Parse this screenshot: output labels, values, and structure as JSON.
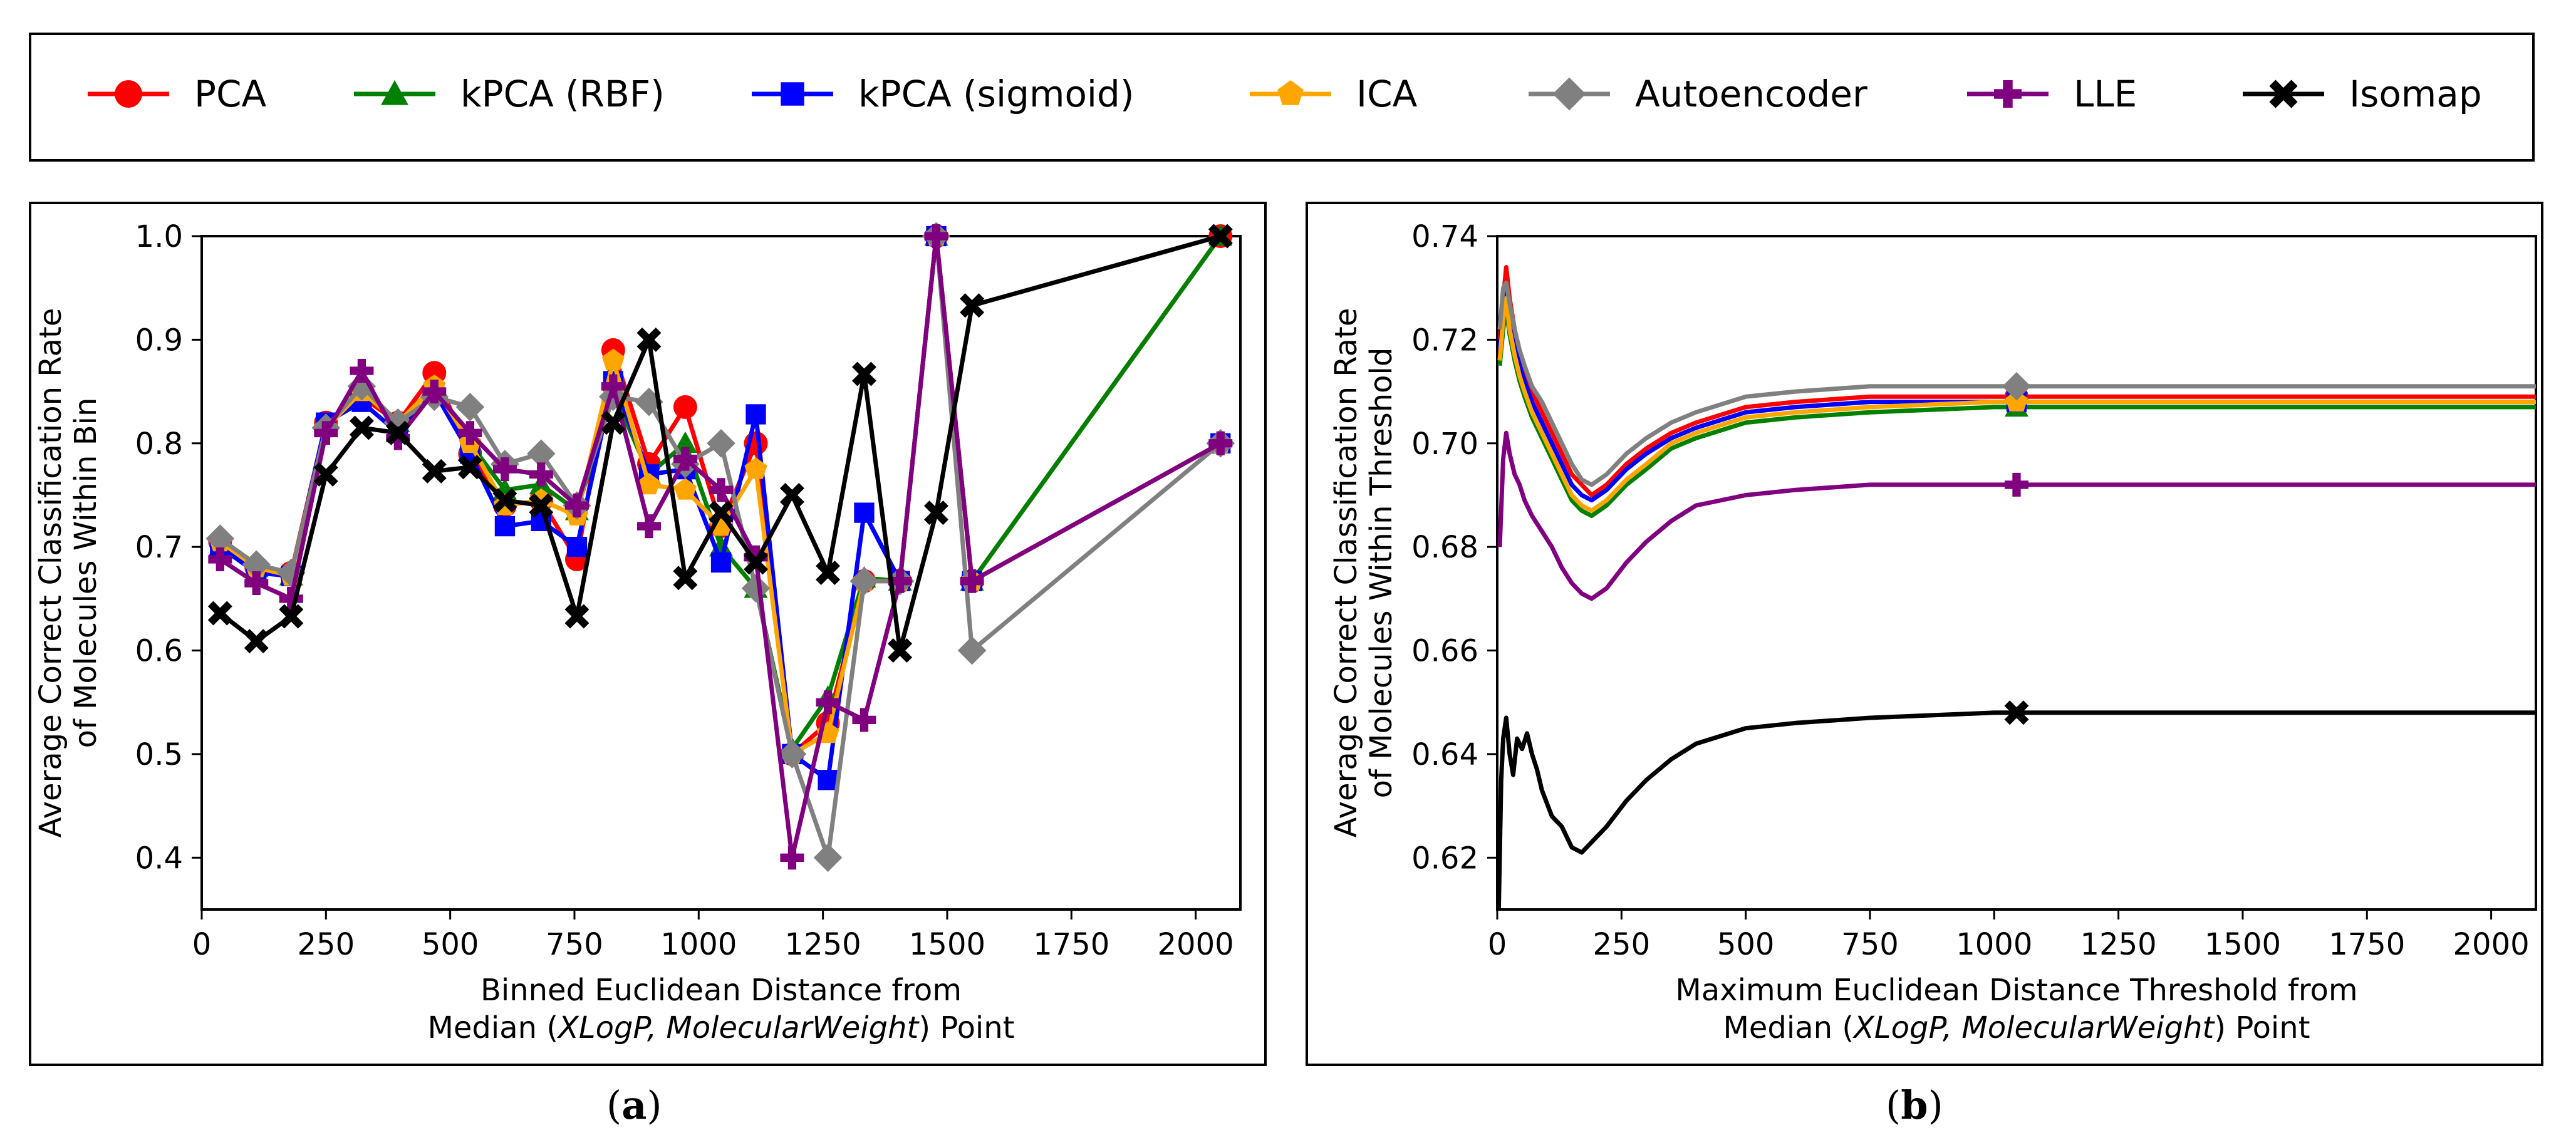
{
  "legend": {
    "entries": [
      {
        "name": "PCA",
        "color": "#ff0000",
        "marker": "circle"
      },
      {
        "name": "kPCA (RBF)",
        "color": "#008000",
        "marker": "triangle"
      },
      {
        "name": "kPCA (sigmoid)",
        "color": "#0000ff",
        "marker": "square"
      },
      {
        "name": "ICA",
        "color": "#ffa500",
        "marker": "pentagon"
      },
      {
        "name": "Autoencoder",
        "color": "#808080",
        "marker": "diamond"
      },
      {
        "name": "LLE",
        "color": "#800080",
        "marker": "plus"
      },
      {
        "name": "Isomap",
        "color": "#000000",
        "marker": "x"
      }
    ]
  },
  "captions": {
    "a": "a",
    "b": "b"
  },
  "chart_data": [
    {
      "type": "line",
      "id": "a",
      "title": "",
      "ylabel": [
        "Average Correct Classification Rate",
        "of Molecules Within Bin"
      ],
      "xlabel_line1": "Binned Euclidean Distance from",
      "xlabel_line2": {
        "pre": "Median (",
        "italic": "XLogP, MolecularWeight",
        "post": ") Point"
      },
      "xlim": [
        0,
        2090
      ],
      "ylim": [
        0.35,
        1.0
      ],
      "xticks": [
        0,
        250,
        500,
        750,
        1000,
        1250,
        1500,
        1750,
        2000
      ],
      "xtick_labels": [
        "0",
        "250",
        "500",
        "750",
        "1000",
        "1250",
        "1500",
        "1750",
        "2000"
      ],
      "yticks": [
        0.4,
        0.5,
        0.6,
        0.7,
        0.8,
        0.9,
        1.0
      ],
      "ytick_labels": [
        "0.4",
        "0.5",
        "0.6",
        "0.7",
        "0.8",
        "0.9",
        "1.0"
      ],
      "grid": false,
      "series": [
        {
          "name": "PCA",
          "x": [
            37,
            110,
            180,
            250,
            322,
            395,
            468,
            540,
            610,
            683,
            755,
            828,
            900,
            973,
            1045,
            1115,
            1188,
            1260,
            1333,
            1405,
            1478,
            1550,
            2050
          ],
          "y": [
            0.705,
            0.68,
            0.675,
            0.82,
            0.845,
            0.82,
            0.868,
            0.79,
            0.74,
            0.745,
            0.688,
            0.89,
            0.78,
            0.835,
            0.72,
            0.8,
            0.5,
            0.53,
            0.667,
            0.667,
            1.0,
            0.667,
            1.0
          ]
        },
        {
          "name": "kPCA (RBF)",
          "x": [
            37,
            110,
            180,
            250,
            322,
            395,
            468,
            540,
            610,
            683,
            755,
            828,
            900,
            973,
            1045,
            1115,
            1188,
            1260,
            1333,
            1405,
            1478,
            1550,
            2050
          ],
          "y": [
            0.7,
            0.68,
            0.672,
            0.815,
            0.855,
            0.82,
            0.855,
            0.8,
            0.755,
            0.76,
            0.735,
            0.85,
            0.77,
            0.8,
            0.7,
            0.66,
            0.505,
            0.555,
            0.67,
            0.667,
            1.0,
            0.667,
            1.0
          ]
        },
        {
          "name": "kPCA (sigmoid)",
          "x": [
            37,
            110,
            180,
            250,
            322,
            395,
            468,
            540,
            610,
            683,
            755,
            828,
            900,
            973,
            1045,
            1115,
            1188,
            1260,
            1333,
            1405,
            1478,
            1550,
            2050
          ],
          "y": [
            0.7,
            0.675,
            0.672,
            0.82,
            0.84,
            0.81,
            0.85,
            0.79,
            0.72,
            0.725,
            0.7,
            0.86,
            0.77,
            0.775,
            0.685,
            0.828,
            0.5,
            0.475,
            0.733,
            0.667,
            1.0,
            0.667,
            0.8
          ]
        },
        {
          "name": "ICA",
          "x": [
            37,
            110,
            180,
            250,
            322,
            395,
            468,
            540,
            610,
            683,
            755,
            828,
            900,
            973,
            1045,
            1115,
            1188,
            1260,
            1333,
            1405,
            1478,
            1550,
            2050
          ],
          "y": [
            0.705,
            0.68,
            0.672,
            0.815,
            0.85,
            0.82,
            0.855,
            0.8,
            0.74,
            0.745,
            0.73,
            0.88,
            0.76,
            0.755,
            0.72,
            0.775,
            0.5,
            0.52,
            0.667,
            0.667,
            1.0,
            0.667,
            0.8
          ]
        },
        {
          "name": "Autoencoder",
          "x": [
            37,
            110,
            180,
            250,
            322,
            395,
            468,
            540,
            610,
            683,
            755,
            828,
            900,
            973,
            1045,
            1115,
            1188,
            1260,
            1333,
            1405,
            1478,
            1550,
            2050
          ],
          "y": [
            0.708,
            0.683,
            0.675,
            0.815,
            0.855,
            0.82,
            0.845,
            0.835,
            0.78,
            0.79,
            0.74,
            0.845,
            0.84,
            0.78,
            0.8,
            0.66,
            0.5,
            0.4,
            0.667,
            0.667,
            1.0,
            0.6,
            0.8
          ]
        },
        {
          "name": "LLE",
          "x": [
            37,
            110,
            180,
            250,
            322,
            395,
            468,
            540,
            610,
            683,
            755,
            828,
            900,
            973,
            1045,
            1115,
            1188,
            1260,
            1333,
            1405,
            1478,
            1550,
            2050
          ],
          "y": [
            0.688,
            0.665,
            0.65,
            0.81,
            0.87,
            0.805,
            0.85,
            0.81,
            0.775,
            0.77,
            0.74,
            0.855,
            0.72,
            0.785,
            0.755,
            0.69,
            0.4,
            0.55,
            0.533,
            0.667,
            1.0,
            0.667,
            0.8
          ]
        },
        {
          "name": "Isomap",
          "x": [
            37,
            110,
            180,
            250,
            322,
            395,
            468,
            540,
            610,
            683,
            755,
            828,
            900,
            973,
            1045,
            1115,
            1188,
            1260,
            1333,
            1405,
            1478,
            1550,
            2050
          ],
          "y": [
            0.636,
            0.609,
            0.633,
            0.77,
            0.815,
            0.81,
            0.773,
            0.777,
            0.745,
            0.74,
            0.633,
            0.82,
            0.9,
            0.67,
            0.733,
            0.685,
            0.75,
            0.675,
            0.867,
            0.6,
            0.733,
            0.933,
            1.0
          ]
        }
      ]
    },
    {
      "type": "line",
      "id": "b",
      "title": "",
      "ylabel": [
        "Average Correct Classification Rate",
        "of Molecules Within Threshold"
      ],
      "xlabel_line1": "Maximum Euclidean Distance Threshold from",
      "xlabel_line2": {
        "pre": "Median (",
        "italic": "XLogP, MolecularWeight",
        "post": ") Point"
      },
      "xlim": [
        0,
        2090
      ],
      "ylim": [
        0.61,
        0.74
      ],
      "xticks": [
        0,
        250,
        500,
        750,
        1000,
        1250,
        1500,
        1750,
        2000
      ],
      "xtick_labels": [
        "0",
        "250",
        "500",
        "750",
        "1000",
        "1250",
        "1500",
        "1750",
        "2000"
      ],
      "yticks": [
        0.62,
        0.64,
        0.66,
        0.68,
        0.7,
        0.72,
        0.74
      ],
      "ytick_labels": [
        "0.62",
        "0.64",
        "0.66",
        "0.68",
        "0.70",
        "0.72",
        "0.74"
      ],
      "grid": false,
      "marker_x": 1045,
      "series": [
        {
          "name": "PCA",
          "x": [
            5,
            12,
            18,
            25,
            35,
            45,
            55,
            70,
            90,
            110,
            130,
            150,
            170,
            190,
            220,
            260,
            300,
            350,
            400,
            500,
            600,
            750,
            1000,
            1250,
            1500,
            2090
          ],
          "y": [
            0.72,
            0.728,
            0.734,
            0.728,
            0.722,
            0.717,
            0.714,
            0.71,
            0.706,
            0.702,
            0.698,
            0.694,
            0.692,
            0.69,
            0.692,
            0.696,
            0.699,
            0.702,
            0.704,
            0.707,
            0.708,
            0.709,
            0.709,
            0.709,
            0.709,
            0.709
          ]
        },
        {
          "name": "kPCA (RBF)",
          "x": [
            5,
            12,
            18,
            25,
            35,
            45,
            55,
            70,
            90,
            110,
            130,
            150,
            170,
            190,
            220,
            260,
            300,
            350,
            400,
            500,
            600,
            750,
            1000,
            1250,
            1500,
            2090
          ],
          "y": [
            0.715,
            0.722,
            0.726,
            0.721,
            0.716,
            0.712,
            0.709,
            0.705,
            0.701,
            0.697,
            0.693,
            0.689,
            0.687,
            0.686,
            0.688,
            0.692,
            0.695,
            0.699,
            0.701,
            0.704,
            0.705,
            0.706,
            0.707,
            0.707,
            0.707,
            0.707
          ]
        },
        {
          "name": "kPCA (sigmoid)",
          "x": [
            5,
            12,
            18,
            25,
            35,
            45,
            55,
            70,
            90,
            110,
            130,
            150,
            170,
            190,
            220,
            260,
            300,
            350,
            400,
            500,
            600,
            750,
            1000,
            1250,
            1500,
            2090
          ],
          "y": [
            0.718,
            0.726,
            0.73,
            0.724,
            0.719,
            0.715,
            0.712,
            0.708,
            0.704,
            0.7,
            0.696,
            0.692,
            0.69,
            0.689,
            0.691,
            0.695,
            0.698,
            0.701,
            0.703,
            0.706,
            0.707,
            0.708,
            0.708,
            0.708,
            0.708,
            0.708
          ]
        },
        {
          "name": "ICA",
          "x": [
            5,
            12,
            18,
            25,
            35,
            45,
            55,
            70,
            90,
            110,
            130,
            150,
            170,
            190,
            220,
            260,
            300,
            350,
            400,
            500,
            600,
            750,
            1000,
            1250,
            1500,
            2090
          ],
          "y": [
            0.716,
            0.724,
            0.728,
            0.722,
            0.717,
            0.713,
            0.71,
            0.706,
            0.702,
            0.698,
            0.694,
            0.69,
            0.688,
            0.687,
            0.689,
            0.693,
            0.696,
            0.7,
            0.702,
            0.705,
            0.706,
            0.707,
            0.708,
            0.708,
            0.708,
            0.708
          ]
        },
        {
          "name": "Autoencoder",
          "x": [
            5,
            12,
            18,
            25,
            35,
            45,
            55,
            70,
            90,
            110,
            130,
            150,
            170,
            190,
            220,
            260,
            300,
            350,
            400,
            500,
            600,
            750,
            1000,
            1250,
            1500,
            2090
          ],
          "y": [
            0.722,
            0.73,
            0.731,
            0.727,
            0.722,
            0.718,
            0.715,
            0.711,
            0.708,
            0.704,
            0.7,
            0.696,
            0.693,
            0.692,
            0.694,
            0.698,
            0.701,
            0.704,
            0.706,
            0.709,
            0.71,
            0.711,
            0.711,
            0.711,
            0.711,
            0.711
          ]
        },
        {
          "name": "LLE",
          "x": [
            5,
            12,
            18,
            25,
            35,
            45,
            55,
            70,
            90,
            110,
            130,
            150,
            170,
            190,
            220,
            260,
            300,
            350,
            400,
            500,
            600,
            750,
            1000,
            1250,
            1500,
            2090
          ],
          "y": [
            0.68,
            0.697,
            0.702,
            0.698,
            0.694,
            0.692,
            0.689,
            0.686,
            0.683,
            0.68,
            0.676,
            0.673,
            0.671,
            0.67,
            0.672,
            0.677,
            0.681,
            0.685,
            0.688,
            0.69,
            0.691,
            0.692,
            0.692,
            0.692,
            0.692,
            0.692
          ]
        },
        {
          "name": "Isomap",
          "x": [
            3,
            8,
            12,
            18,
            25,
            32,
            40,
            50,
            60,
            70,
            80,
            90,
            110,
            130,
            150,
            170,
            190,
            220,
            260,
            300,
            350,
            400,
            500,
            600,
            750,
            1000,
            1250,
            1500,
            2090
          ],
          "y": [
            0.61,
            0.635,
            0.643,
            0.647,
            0.64,
            0.636,
            0.643,
            0.641,
            0.644,
            0.64,
            0.637,
            0.633,
            0.628,
            0.626,
            0.622,
            0.621,
            0.623,
            0.626,
            0.631,
            0.635,
            0.639,
            0.642,
            0.645,
            0.646,
            0.647,
            0.648,
            0.648,
            0.648,
            0.648
          ]
        }
      ]
    }
  ]
}
